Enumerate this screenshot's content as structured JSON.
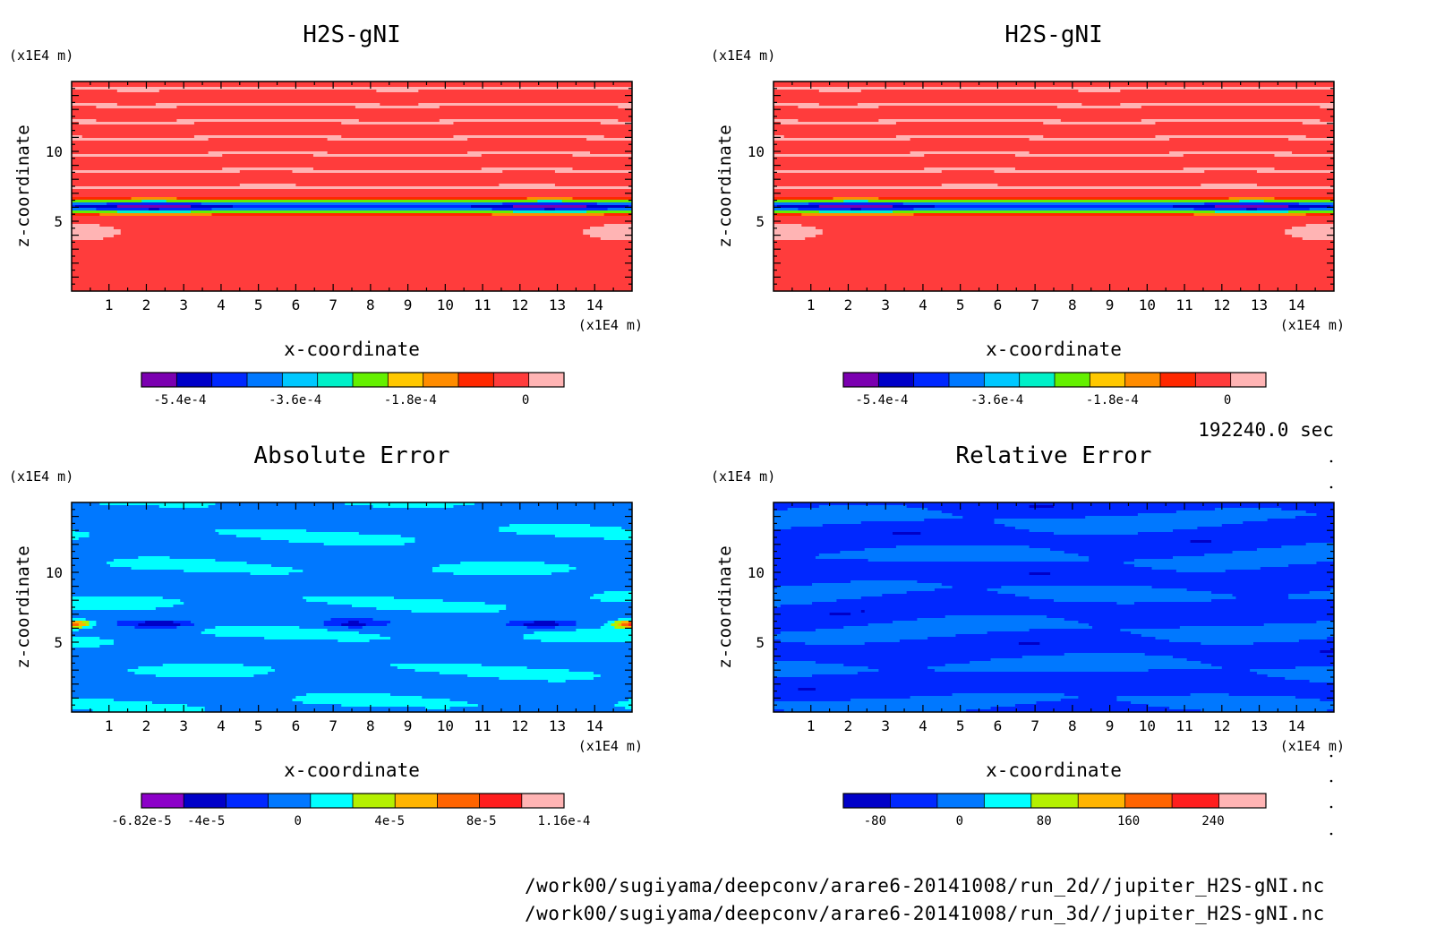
{
  "chart_data": [
    {
      "type": "heatmap",
      "title": "H2S-gNI",
      "xlabel": "x-coordinate",
      "ylabel": "z-coordinate",
      "x_unit": "(x1E4 m)",
      "y_unit": "(x1E4 m)",
      "xlim": [
        0,
        15
      ],
      "ylim": [
        0,
        15
      ],
      "x_ticks": [
        "1",
        "2",
        "3",
        "4",
        "5",
        "6",
        "7",
        "8",
        "9",
        "10",
        "11",
        "12",
        "13",
        "14"
      ],
      "y_ticks": [
        "5",
        "10"
      ],
      "colorbar": {
        "colors": [
          "#7b00b0",
          "#0000c8",
          "#0028ff",
          "#0078ff",
          "#00c8ff",
          "#00f0c8",
          "#64f000",
          "#ffc800",
          "#ff8c00",
          "#ff2800",
          "#ff3c3c",
          "#ffb4b4"
        ],
        "tick_labels": [
          "-5.4e-4",
          "-3.6e-4",
          "-1.8e-4",
          "0"
        ],
        "tick_values": [
          -0.00054,
          -0.00036,
          -0.00018,
          0
        ],
        "min": -0.0006,
        "max": 6e-05
      },
      "field": "h2s"
    },
    {
      "type": "heatmap",
      "title": "H2S-gNI",
      "xlabel": "x-coordinate",
      "ylabel": "z-coordinate",
      "x_unit": "(x1E4 m)",
      "y_unit": "(x1E4 m)",
      "xlim": [
        0,
        15
      ],
      "ylim": [
        0,
        15
      ],
      "x_ticks": [
        "1",
        "2",
        "3",
        "4",
        "5",
        "6",
        "7",
        "8",
        "9",
        "10",
        "11",
        "12",
        "13",
        "14"
      ],
      "y_ticks": [
        "5",
        "10"
      ],
      "colorbar": {
        "colors": [
          "#7b00b0",
          "#0000c8",
          "#0028ff",
          "#0078ff",
          "#00c8ff",
          "#00f0c8",
          "#64f000",
          "#ffc800",
          "#ff8c00",
          "#ff2800",
          "#ff3c3c",
          "#ffb4b4"
        ],
        "tick_labels": [
          "-5.4e-4",
          "-3.6e-4",
          "-1.8e-4",
          "0"
        ],
        "tick_values": [
          -0.00054,
          -0.00036,
          -0.00018,
          0
        ],
        "min": -0.0006,
        "max": 6e-05
      },
      "field": "h2s"
    },
    {
      "type": "heatmap",
      "title": "Absolute Error",
      "xlabel": "x-coordinate",
      "ylabel": "z-coordinate",
      "x_unit": "(x1E4 m)",
      "y_unit": "(x1E4 m)",
      "xlim": [
        0,
        15
      ],
      "ylim": [
        0,
        15
      ],
      "x_ticks": [
        "1",
        "2",
        "3",
        "4",
        "5",
        "6",
        "7",
        "8",
        "9",
        "10",
        "11",
        "12",
        "13",
        "14"
      ],
      "y_ticks": [
        "5",
        "10"
      ],
      "colorbar": {
        "colors": [
          "#8c00c8",
          "#0000c8",
          "#0028ff",
          "#0078ff",
          "#00ffff",
          "#b4f000",
          "#ffb400",
          "#ff6400",
          "#ff1e1e",
          "#ffb4b4"
        ],
        "tick_labels": [
          "-6.82e-5",
          "-4e-5",
          "0",
          "4e-5",
          "8e-5",
          "1.16e-4"
        ],
        "tick_values": [
          -6.82e-05,
          -4e-05,
          0,
          4e-05,
          8e-05,
          0.000116
        ],
        "min": -6.82e-05,
        "max": 0.000116
      },
      "field": "abs"
    },
    {
      "type": "heatmap",
      "title": "Relative Error",
      "xlabel": "x-coordinate",
      "ylabel": "z-coordinate",
      "x_unit": "(x1E4 m)",
      "y_unit": "(x1E4 m)",
      "xlim": [
        0,
        15
      ],
      "ylim": [
        0,
        15
      ],
      "x_ticks": [
        "1",
        "2",
        "3",
        "4",
        "5",
        "6",
        "7",
        "8",
        "9",
        "10",
        "11",
        "12",
        "13",
        "14"
      ],
      "y_ticks": [
        "5",
        "10"
      ],
      "colorbar": {
        "colors": [
          "#0000c8",
          "#0028ff",
          "#0078ff",
          "#00ffff",
          "#b4f000",
          "#ffb400",
          "#ff6400",
          "#ff1e1e",
          "#ffb4b4"
        ],
        "tick_labels": [
          "-80",
          "0",
          "80",
          "160",
          "240"
        ],
        "tick_values": [
          -80,
          0,
          80,
          160,
          240
        ],
        "min": -110,
        "max": 290
      },
      "field": "rel"
    }
  ],
  "time_label": "192240.0 sec",
  "footer": [
    "/work00/sugiyama/deepconv/arare6-20141008/run_2d//jupiter_H2S-gNI.nc",
    "/work00/sugiyama/deepconv/arare6-20141008/run_3d//jupiter_H2S-gNI.nc"
  ]
}
